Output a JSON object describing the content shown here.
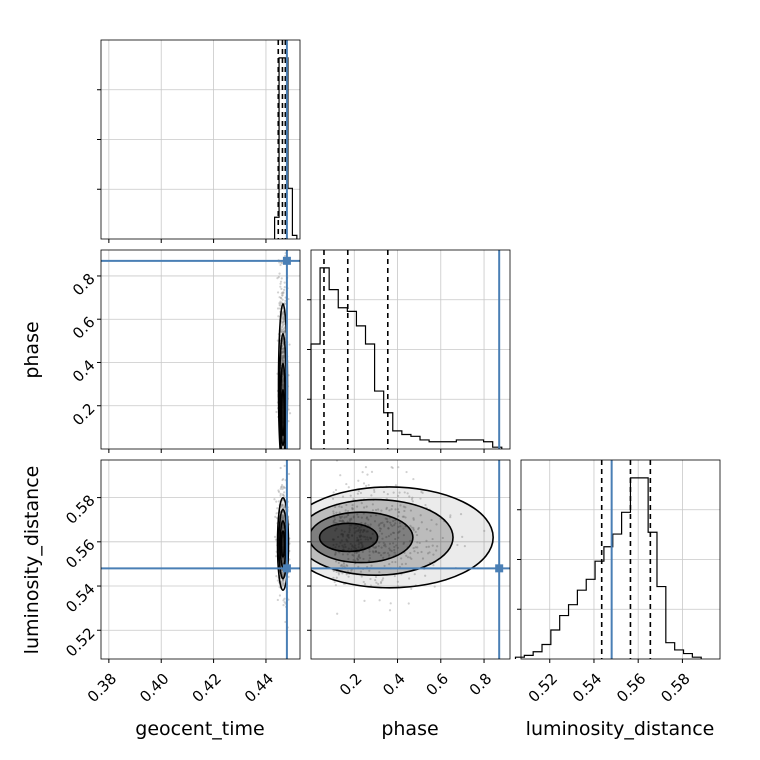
{
  "colors": {
    "truth": "#4a7fb5",
    "hist": "#000000",
    "quantile": "#000000",
    "grid": "#c8c8c8",
    "samples": "#9a9a9a"
  },
  "chart_data": {
    "type": "corner",
    "parameters": [
      "geocent_time",
      "phase",
      "luminosity_distance"
    ],
    "truths": {
      "geocent_time": 0.448,
      "phase": 0.87,
      "luminosity_distance": 0.548
    },
    "ranges": {
      "geocent_time": [
        0.377,
        0.453
      ],
      "phase": [
        0.0,
        0.92
      ],
      "luminosity_distance": [
        0.507,
        0.597
      ]
    },
    "ticks": {
      "geocent_time": [
        "0.38",
        "0.40",
        "0.42",
        "0.44"
      ],
      "phase": [
        "0.2",
        "0.4",
        "0.6",
        "0.8"
      ],
      "luminosity_distance": [
        "0.52",
        "0.54",
        "0.56",
        "0.58"
      ]
    },
    "grid": true,
    "quantiles": {
      "geocent_time": [
        0.4447,
        0.4463,
        0.4474
      ],
      "phase": [
        0.06,
        0.17,
        0.355
      ],
      "luminosity_distance": [
        0.5435,
        0.5565,
        0.5655
      ]
    },
    "marginals": {
      "geocent_time": {
        "edges": [
          0.4433,
          0.445,
          0.4467,
          0.4484,
          0.4501,
          0.4518
        ],
        "counts": [
          0.12,
          1.0,
          1.0,
          0.28,
          0.02
        ]
      },
      "phase": {
        "edges": [
          0.0,
          0.042,
          0.084,
          0.126,
          0.168,
          0.21,
          0.252,
          0.294,
          0.336,
          0.378,
          0.42,
          0.462,
          0.504,
          0.546,
          0.588,
          0.63,
          0.672,
          0.714,
          0.756,
          0.798,
          0.84,
          0.882
        ],
        "counts": [
          0.58,
          1.0,
          0.88,
          0.78,
          0.76,
          0.68,
          0.58,
          0.32,
          0.2,
          0.1,
          0.08,
          0.07,
          0.05,
          0.04,
          0.04,
          0.04,
          0.05,
          0.05,
          0.05,
          0.04,
          0.01
        ]
      },
      "luminosity_distance": {
        "edges": [
          0.5045,
          0.5085,
          0.5125,
          0.5165,
          0.5205,
          0.5245,
          0.5285,
          0.5325,
          0.5365,
          0.5405,
          0.5445,
          0.5485,
          0.5525,
          0.5565,
          0.5605,
          0.5645,
          0.5685,
          0.5725,
          0.5765,
          0.5805,
          0.5845,
          0.5885
        ],
        "counts": [
          0.01,
          0.02,
          0.04,
          0.08,
          0.16,
          0.24,
          0.3,
          0.38,
          0.44,
          0.54,
          0.62,
          0.69,
          0.81,
          1.0,
          1.0,
          0.7,
          0.4,
          0.09,
          0.05,
          0.03,
          0.01
        ]
      }
    },
    "joint": {
      "phase_vs_geocent_time": {
        "center": [
          0.4465,
          0.12
        ],
        "spread": [
          0.0009,
          0.2
        ]
      },
      "luminosity_distance_vs_geocent_time": {
        "center": [
          0.4465,
          0.559
        ],
        "spread": [
          0.0011,
          0.011
        ]
      },
      "luminosity_distance_vs_phase": {
        "center": [
          0.1,
          0.562
        ],
        "spread": [
          0.18,
          0.012
        ]
      }
    }
  }
}
